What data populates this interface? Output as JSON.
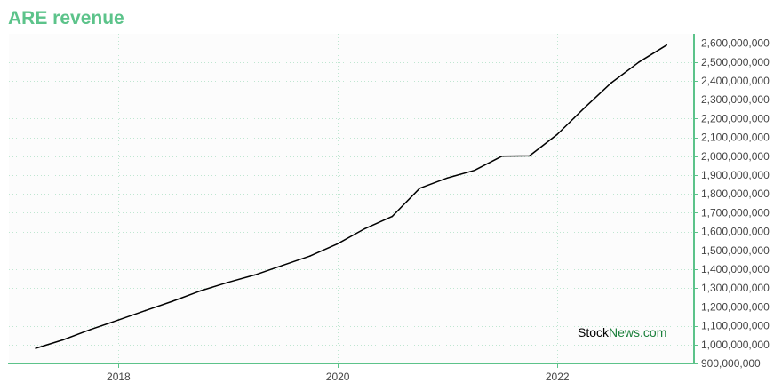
{
  "title": "ARE revenue",
  "colors": {
    "accent": "#5cc38a",
    "line": "#000000",
    "grid": "#bfe6d1",
    "plot_background": "#fcfcfc",
    "watermark_stock": "#000000",
    "watermark_news": "#1a7f3a"
  },
  "watermark": {
    "stock": "Stock",
    "news": "News",
    "domain": ".com"
  },
  "chart_data": {
    "type": "line",
    "title": "ARE revenue",
    "xlabel": "",
    "ylabel": "",
    "grid": true,
    "y_axis_side": "right",
    "xlim": [
      "2017-01-01",
      "2023-04-01"
    ],
    "ylim": [
      900000000,
      2650000000
    ],
    "x_ticks": [
      "2018",
      "2020",
      "2022"
    ],
    "y_ticks": [
      900000000,
      1000000000,
      1100000000,
      1200000000,
      1300000000,
      1400000000,
      1500000000,
      1600000000,
      1700000000,
      1800000000,
      1900000000,
      2000000000,
      2100000000,
      2200000000,
      2300000000,
      2400000000,
      2500000000,
      2600000000
    ],
    "y_tick_labels": [
      "900,000,000",
      "1,000,000,000",
      "1,100,000,000",
      "1,200,000,000",
      "1,300,000,000",
      "1,400,000,000",
      "1,500,000,000",
      "1,600,000,000",
      "1,700,000,000",
      "1,800,000,000",
      "1,900,000,000",
      "2,000,000,000",
      "2,100,000,000",
      "2,200,000,000",
      "2,300,000,000",
      "2,400,000,000",
      "2,500,000,000",
      "2,600,000,000"
    ],
    "series": [
      {
        "x": [
          "2017-03-31",
          "2017-06-30",
          "2017-09-30",
          "2017-12-31",
          "2018-03-31",
          "2018-06-30",
          "2018-09-30",
          "2018-12-31",
          "2019-03-31",
          "2019-06-30",
          "2019-09-30",
          "2019-12-31",
          "2020-03-31",
          "2020-06-30",
          "2020-09-30",
          "2020-12-31",
          "2021-03-31",
          "2021-06-30",
          "2021-09-30",
          "2021-12-31",
          "2022-03-31",
          "2022-06-30",
          "2022-09-30",
          "2022-12-31"
        ],
        "values": [
          980000000,
          1025000000,
          1080000000,
          1130000000,
          1180000000,
          1230000000,
          1285000000,
          1330000000,
          1370000000,
          1420000000,
          1470000000,
          1535000000,
          1615000000,
          1680000000,
          1830000000,
          1885000000,
          1925000000,
          2000000000,
          2002000000,
          2115000000,
          2255000000,
          2390000000,
          2500000000,
          2590000000
        ]
      }
    ]
  }
}
